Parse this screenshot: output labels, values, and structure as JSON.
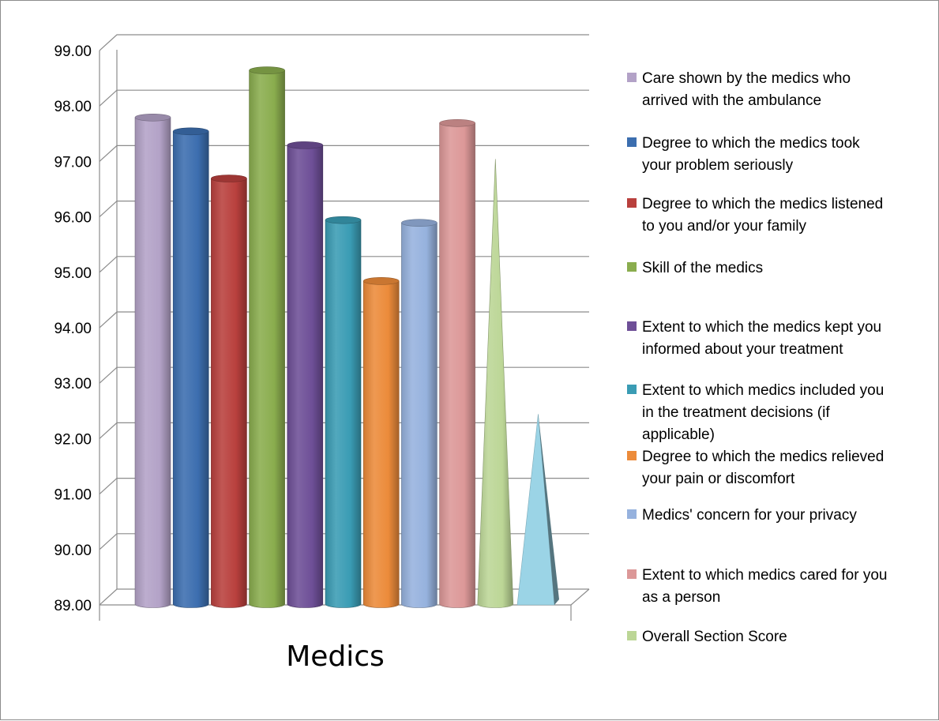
{
  "chart_data": {
    "type": "bar",
    "categories": [
      "Medics"
    ],
    "ylim": [
      89,
      99
    ],
    "yticks": [
      "89.00",
      "90.00",
      "91.00",
      "92.00",
      "93.00",
      "94.00",
      "95.00",
      "96.00",
      "97.00",
      "98.00",
      "99.00"
    ],
    "grid": true,
    "legend_position": "right",
    "series": [
      {
        "name": "Care shown by the medics who arrived with the ambulance",
        "value": 97.65,
        "color": "#b3a2c7",
        "shape": "cylinder",
        "legend": [
          "Care shown by the medics who",
          "arrived with the ambulance"
        ]
      },
      {
        "name": "Degree to which the medics took your problem seriously",
        "value": 97.4,
        "color": "#3c6eaf",
        "shape": "cylinder",
        "legend": [
          "Degree to which the medics took",
          "your problem seriously"
        ]
      },
      {
        "name": "Degree to which the medics listened to you and/or your family",
        "value": 96.55,
        "color": "#b9403d",
        "shape": "cylinder",
        "legend": [
          "Degree to which the medics listened",
          "to you and/or your family"
        ]
      },
      {
        "name": "Skill of the medics",
        "value": 98.5,
        "color": "#8aad4e",
        "shape": "cylinder",
        "legend": [
          "Skill of the medics"
        ]
      },
      {
        "name": "Extent to which the medics kept you informed about your treatment",
        "value": 97.15,
        "color": "#6e4f97",
        "shape": "cylinder",
        "legend": [
          "Extent to which the medics kept you",
          "informed about your treatment"
        ]
      },
      {
        "name": "Extent to which medics included you in the treatment decisions (if applicable)",
        "value": 95.8,
        "color": "#3a9cb4",
        "shape": "cylinder",
        "legend": [
          "Extent to which medics included you",
          "in the treatment decisions  (if",
          "applicable)"
        ]
      },
      {
        "name": "Degree to which the medics relieved your pain or discomfort",
        "value": 94.7,
        "color": "#ec8b3a",
        "shape": "cylinder",
        "legend": [
          "Degree to which the medics relieved",
          "your pain or discomfort"
        ]
      },
      {
        "name": "Medics' concern for your privacy",
        "value": 95.75,
        "color": "#96b2de",
        "shape": "cylinder",
        "legend": [
          "Medics' concern for your privacy"
        ]
      },
      {
        "name": "Extent to which medics cared for you as a person",
        "value": 97.55,
        "color": "#dc9898",
        "shape": "cylinder",
        "legend": [
          "Extent to which medics cared for you",
          "as a person"
        ]
      },
      {
        "name": "Overall Section  Score",
        "value": 96.9,
        "color": "#bcd696",
        "shape": "cone",
        "legend": [
          "Overall Section  Score"
        ]
      },
      {
        "name": "",
        "value": 92.3,
        "color": "#9bd4e6",
        "shape": "pyramid",
        "legend": []
      }
    ]
  }
}
